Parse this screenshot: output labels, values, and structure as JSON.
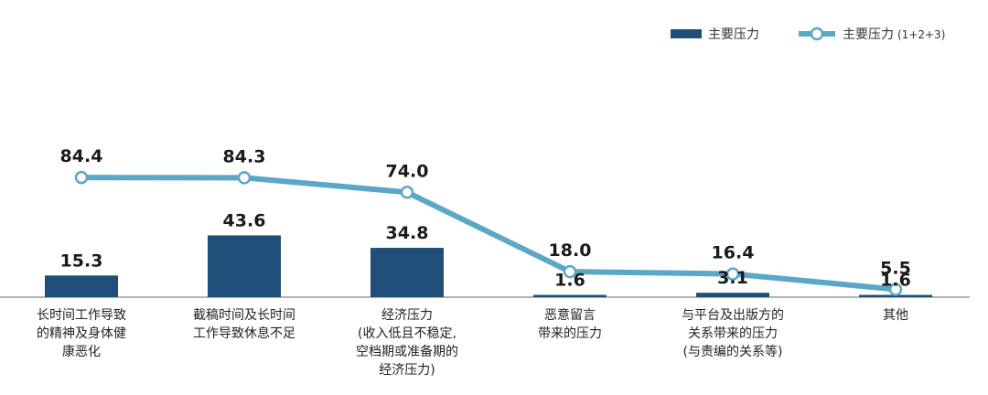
{
  "colors": {
    "bar": "#1f4e79",
    "line": "#5aa7c8",
    "axis": "#9a9a9a"
  },
  "chart_data": {
    "type": "bar+line",
    "categories": [
      [
        "长时间工作导致",
        "的精神及身体健",
        "康恶化"
      ],
      [
        "截稿时间及长时间",
        "工作导致休息不足"
      ],
      [
        "经济压力",
        "(收入低且不稳定,",
        "空档期或准备期的",
        "经济压力)"
      ],
      [
        "恶意留言",
        "带来的压力"
      ],
      [
        "与平台及出版方的",
        "关系带来的压力",
        "(与责编的关系等)"
      ],
      [
        "其他"
      ]
    ],
    "series": [
      {
        "name": "主要压力",
        "type": "bar",
        "values": [
          15.3,
          43.6,
          34.8,
          1.6,
          3.1,
          1.6
        ],
        "labels": [
          "15.3",
          "43.6",
          "34.8",
          "1.6",
          "3.1",
          "1.6"
        ]
      },
      {
        "name": "主要压力",
        "name_suffix": "(1+2+3)",
        "type": "line",
        "values": [
          84.4,
          84.3,
          74.0,
          18.0,
          16.4,
          5.5
        ],
        "labels": [
          "84.4",
          "84.3",
          "74.0",
          "18.0",
          "16.4",
          "5.5"
        ]
      }
    ],
    "ylim": [
      0,
      100
    ],
    "legend": "top-right",
    "grid": false
  }
}
